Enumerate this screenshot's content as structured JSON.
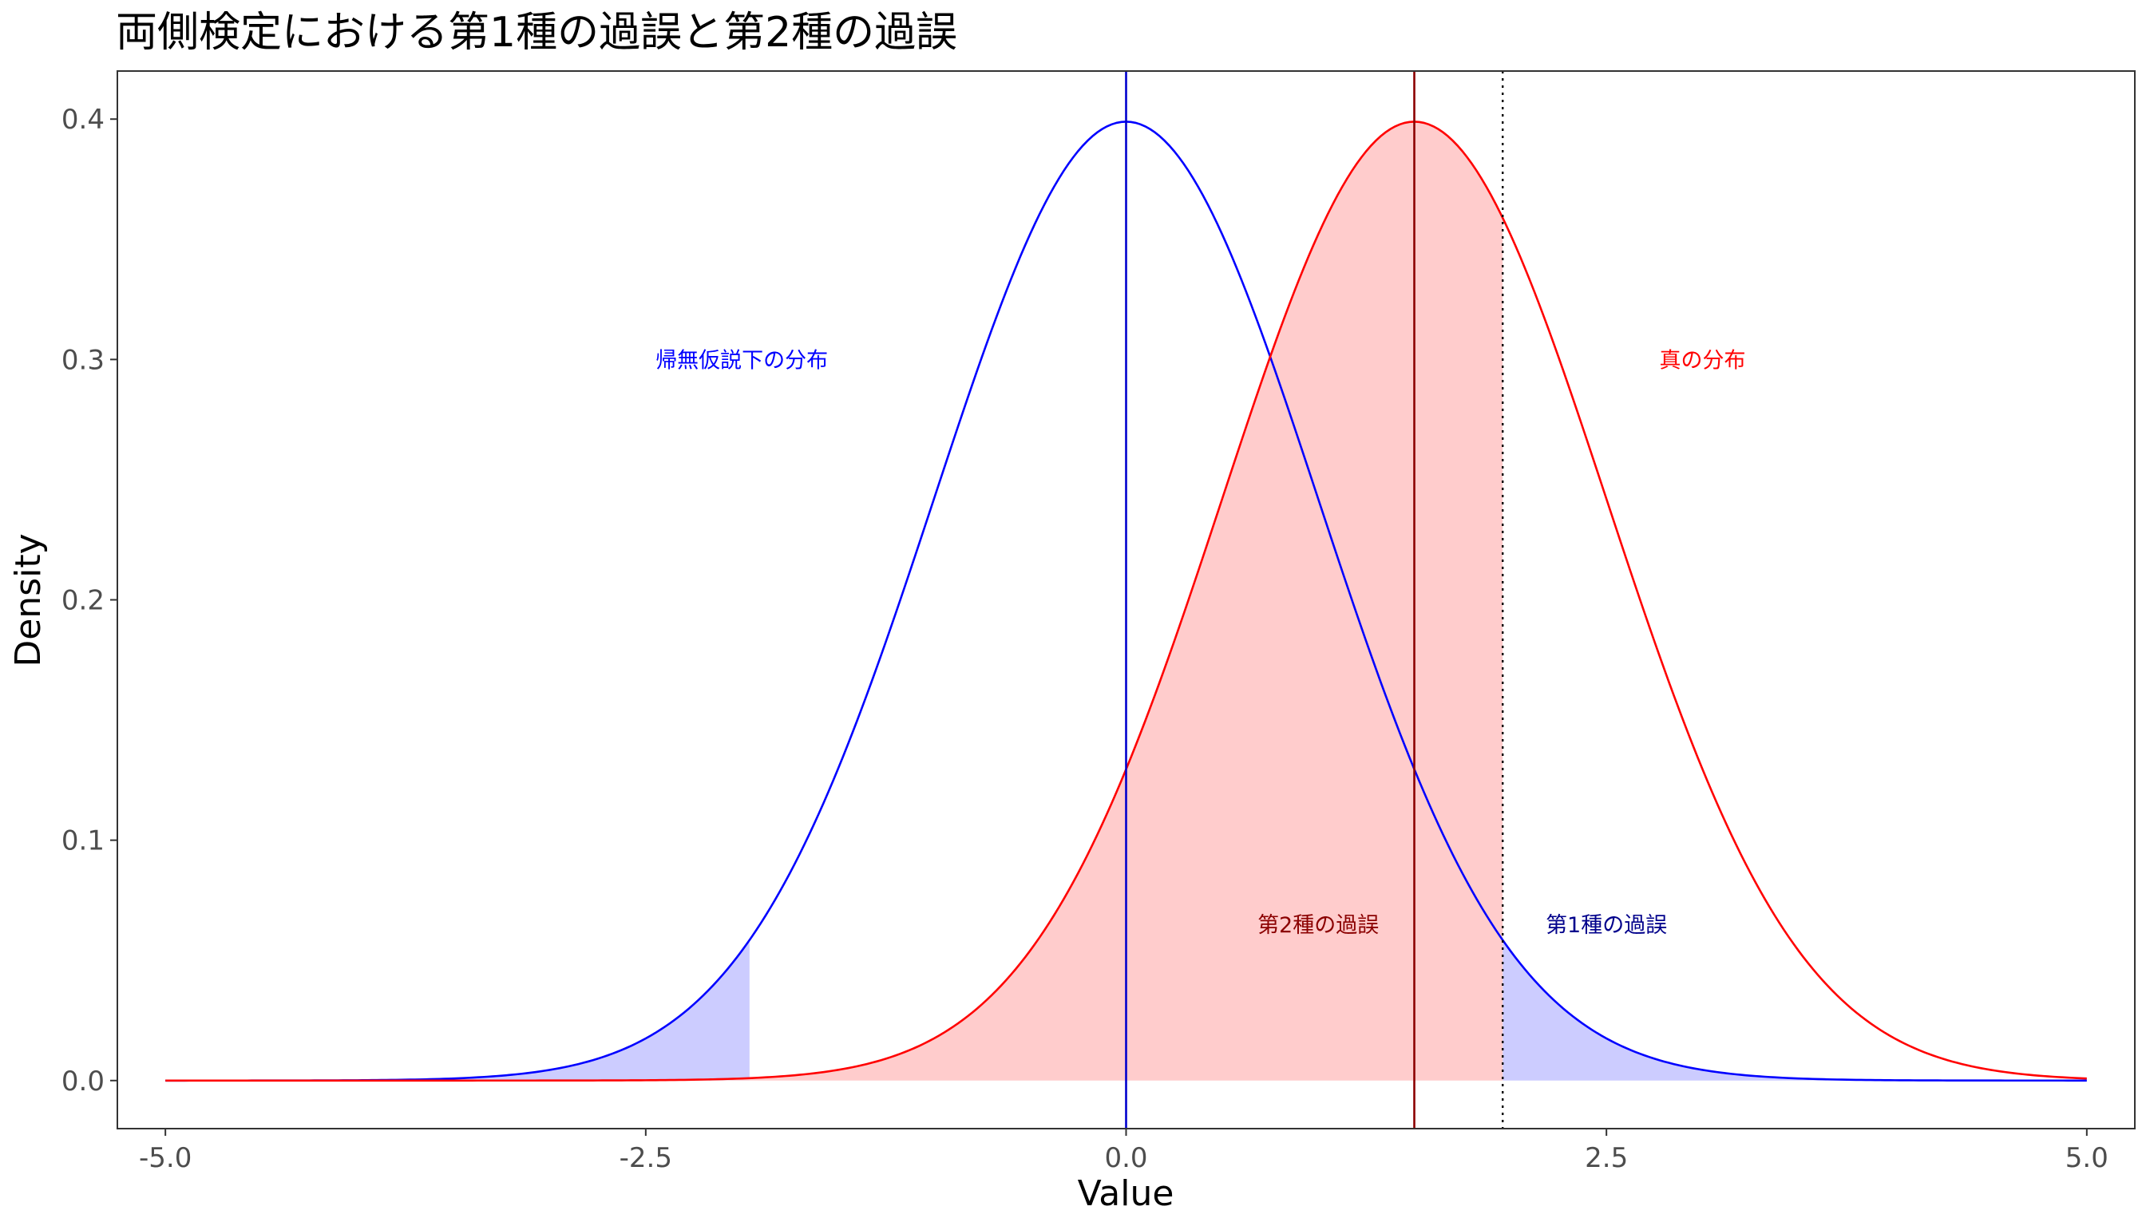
{
  "chart_data": {
    "type": "line",
    "title": "両側検定における第1種の過誤と第2種の過誤",
    "xlabel": "Value",
    "ylabel": "Density",
    "xlim": [
      -5.25,
      5.25
    ],
    "ylim": [
      -0.02,
      0.42
    ],
    "x_ticks": [
      -5.0,
      -2.5,
      0.0,
      2.5,
      5.0
    ],
    "x_tick_labels": [
      "-5.0",
      "-2.5",
      "0.0",
      "2.5",
      "5.0"
    ],
    "y_ticks": [
      0.0,
      0.1,
      0.2,
      0.3,
      0.4
    ],
    "y_tick_labels": [
      "0.0",
      "0.1",
      "0.2",
      "0.3",
      "0.4"
    ],
    "grid": false,
    "series": [
      {
        "kind": "normal-density",
        "mean": 0.0,
        "sd": 1.0,
        "x_range": [
          -5.0,
          5.0
        ],
        "color": "#0000ff"
      },
      {
        "kind": "normal-density",
        "mean": 1.5,
        "sd": 1.0,
        "x_range": [
          -5.0,
          5.0
        ],
        "color": "#ff0000"
      }
    ],
    "shaded_regions": [
      {
        "under": 0,
        "x_range": [
          -5.0,
          -1.96
        ],
        "color": "#ccccff"
      },
      {
        "under": 0,
        "x_range": [
          1.96,
          5.0
        ],
        "color": "#ccccff"
      },
      {
        "under": 1,
        "x_range": [
          -5.0,
          1.96
        ],
        "color": "#ffcccc"
      }
    ],
    "vertical_lines": [
      {
        "x": 0.0,
        "color": "#0000cd",
        "style": "solid"
      },
      {
        "x": 1.5,
        "color": "#8b0000",
        "style": "solid"
      },
      {
        "x": 1.96,
        "color": "#000000",
        "style": "dotted"
      }
    ],
    "annotations": [
      {
        "text": "帰無仮説下の分布",
        "x": -2.0,
        "y": 0.3,
        "color": "#0000ff"
      },
      {
        "text": "真の分布",
        "x": 3.0,
        "y": 0.3,
        "color": "#ff0000"
      },
      {
        "text": "第2種の過誤",
        "x": 1.0,
        "y": 0.065,
        "color": "#8b0000"
      },
      {
        "text": "第1種の過誤",
        "x": 2.5,
        "y": 0.065,
        "color": "#00008b"
      }
    ]
  }
}
